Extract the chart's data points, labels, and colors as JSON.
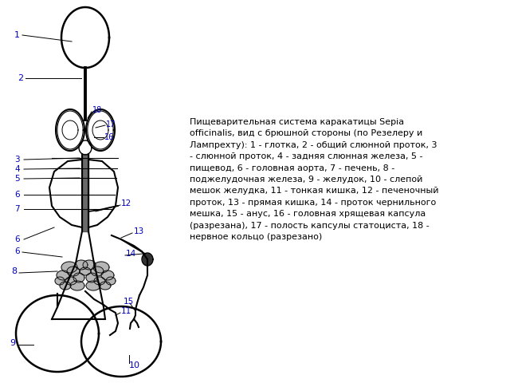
{
  "description_text": "Пищеварительная система каракатицы Sepia\nofficinalis, вид с брюшной стороны (по Резелеру и\nЛампрехту): 1 - глотка, 2 - общий слюнной проток, 3\n- слюнной проток, 4 - задняя слюнная железа, 5 -\nпищевод, 6 - головная аорта, 7 - печень, 8 -\nподжелудочная железа, 9 - желудок, 10 - слепой\nмешок желудка, 11 - тонкая кишка, 12 - печеночный\nпроток, 13 - прямая кишка, 14 - проток чернильного\nмешка, 15 - анус, 16 - головная хрящевая капсула\n(разрезана), 17 - полость капсулы статоциста, 18 -\nнервное кольцо (разрезано)",
  "bg_color": "#ffffff",
  "line_color": "#000000",
  "label_color": "#0000bb",
  "text_color": "#000000"
}
